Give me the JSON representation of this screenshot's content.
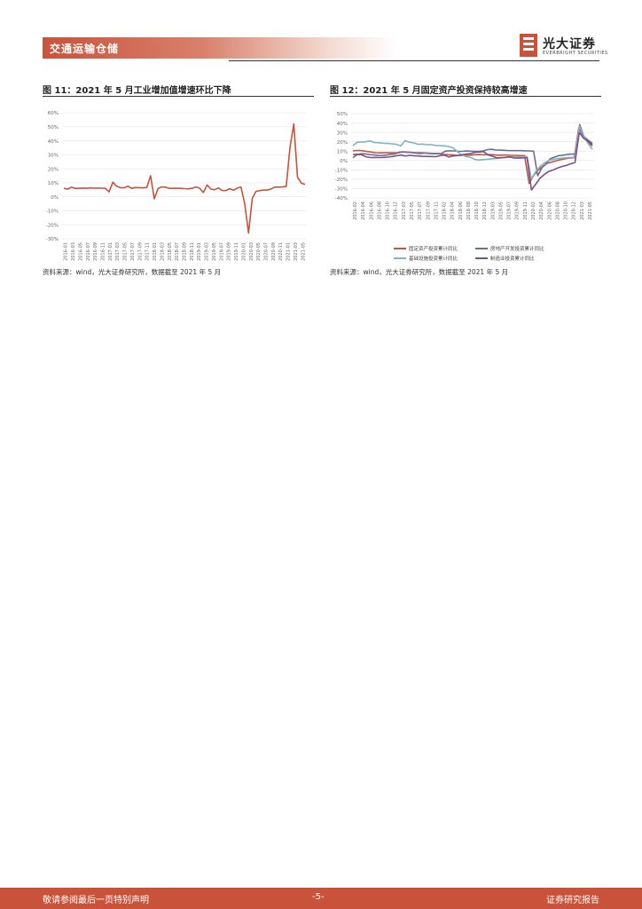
{
  "header": {
    "title": "交通运输仓储",
    "logo_name": "光大证券",
    "logo_sub": "EVERBRIGHT SECURITIES"
  },
  "colors": {
    "accent": "#c8533a"
  },
  "figures": [
    {
      "title": "图 11：2021 年 5 月工业增加值增速环比下降",
      "source": "资料来源：wind，光大证券研究所，数据截至 2021 年 5 月"
    },
    {
      "title": "图 12：2021 年 5 月固定资产投资保持较高增速",
      "source": "资料来源：wind，光大证券研究所，数据截至 2021 年 5 月"
    }
  ],
  "footer": {
    "left": "敬请参阅最后一页特别声明",
    "page": "-5-",
    "right": "证券研究报告"
  },
  "chart_data": [
    {
      "type": "line",
      "ylim": [
        -30,
        60
      ],
      "yticks": [
        "60%",
        "50%",
        "40%",
        "30%",
        "20%",
        "10%",
        "0%",
        "-10%",
        "-20%",
        "-30%"
      ],
      "xticks": [
        "2016-01",
        "2016-03",
        "2016-05",
        "2016-07",
        "2016-09",
        "2016-11",
        "2017-01",
        "2017-03",
        "2017-05",
        "2017-07",
        "2017-09",
        "2017-11",
        "2018-01",
        "2018-03",
        "2018-05",
        "2018-07",
        "2018-09",
        "2018-11",
        "2019-01",
        "2019-03",
        "2019-05",
        "2019-07",
        "2019-09",
        "2019-11",
        "2020-01",
        "2020-03",
        "2020-05",
        "2020-07",
        "2020-09",
        "2020-11",
        "2021-01",
        "2021-03",
        "2021-05"
      ],
      "series": [
        {
          "color": "#c8533a",
          "values": [
            6.0,
            5.4,
            6.8,
            6.0,
            6.0,
            6.2,
            6.0,
            6.3,
            6.1,
            6.2,
            6.1,
            6.0,
            3.5,
            10.4,
            7.5,
            6.5,
            6.4,
            7.6,
            6.0,
            6.6,
            6.5,
            6.4,
            6.6,
            15.0,
            -1.5,
            6.0,
            7.0,
            6.8,
            6.0,
            6.0,
            6.1,
            6.0,
            5.8,
            5.7,
            6.0,
            7.0,
            6.2,
            3.0,
            8.5,
            5.5,
            5.0,
            6.3,
            4.5,
            4.4,
            5.8,
            4.7,
            6.2,
            6.9,
            -5.0,
            -25.9,
            -1.1,
            3.9,
            4.4,
            4.8,
            4.8,
            5.6,
            6.9,
            6.9,
            7.0,
            7.3,
            35.1,
            52.0,
            14.1,
            9.8,
            8.8
          ]
        }
      ]
    },
    {
      "type": "line",
      "ylim": [
        -40,
        50
      ],
      "yticks": [
        "50%",
        "40%",
        "30%",
        "20%",
        "10%",
        "0%",
        "-10%",
        "-20%",
        "-30%",
        "-40%"
      ],
      "xticks": [
        "2016-02",
        "2016-04",
        "2016-06",
        "2016-08",
        "2016-10",
        "2016-12",
        "2017-03",
        "2017-05",
        "2017-07",
        "2017-09",
        "2017-11",
        "2018-02",
        "2018-04",
        "2018-06",
        "2018-08",
        "2018-10",
        "2018-12",
        "2019-03",
        "2019-05",
        "2019-07",
        "2019-09",
        "2019-11",
        "2020-02",
        "2020-04",
        "2020-06",
        "2020-08",
        "2020-10",
        "2020-12",
        "2021-03",
        "2021-05"
      ],
      "series": [
        {
          "name": "固定资产投资累计同比",
          "color": "#c8533a",
          "values": [
            10.2,
            10.7,
            10.5,
            9.6,
            9.0,
            8.3,
            8.1,
            8.2,
            8.3,
            8.2,
            8.1,
            9.2,
            8.9,
            8.6,
            8.3,
            8.3,
            8.0,
            7.5,
            7.2,
            7.5,
            6.5,
            6.1,
            6.0,
            5.5,
            5.4,
            5.6,
            5.7,
            6.1,
            6.3,
            5.9,
            6.3,
            6.1,
            5.6,
            5.8,
            5.8,
            5.5,
            5.4,
            5.2,
            5.2,
            -24.5,
            -16.1,
            -10.3,
            -6.3,
            -3.1,
            -1.6,
            -0.3,
            0.8,
            1.8,
            2.6,
            2.9,
            35.0,
            25.6,
            19.9,
            15.4
          ]
        },
        {
          "name": "房地产开发投资累计同比",
          "color": "#6b6f8f",
          "values": [
            3.0,
            6.2,
            7.2,
            7.0,
            6.1,
            6.0,
            5.3,
            5.4,
            5.8,
            6.6,
            6.9,
            8.9,
            9.1,
            8.8,
            8.5,
            7.9,
            7.5,
            7.8,
            7.8,
            7.6,
            7.5,
            7.3,
            9.9,
            10.3,
            10.2,
            9.7,
            9.7,
            10.1,
            9.9,
            9.7,
            9.7,
            10.1,
            11.6,
            11.9,
            11.2,
            11.1,
            10.9,
            10.6,
            10.5,
            10.5,
            10.5,
            10.3,
            10.2,
            9.9,
            -16.3,
            -7.7,
            -3.3,
            1.9,
            3.6,
            5.2,
            5.6,
            6.3,
            6.8,
            7.0,
            38.3,
            25.6,
            21.6,
            18.3
          ]
        },
        {
          "name": "基础设施投资累计同比",
          "color": "#7fb3c8",
          "values": [
            15.7,
            19.6,
            19.8,
            20.0,
            20.9,
            19.1,
            18.9,
            18.5,
            18.2,
            17.8,
            17.2,
            15.7,
            21.1,
            19.5,
            18.7,
            17.2,
            17.5,
            16.8,
            16.9,
            16.0,
            15.8,
            15.6,
            14.9,
            13.4,
            9.4,
            5.8,
            4.2,
            3.3,
            1.2,
            0.5,
            1.0,
            1.4,
            1.8,
            2.3,
            2.6,
            3.2,
            3.8,
            4.2,
            4.0,
            3.4,
            3.8,
            -19.7,
            -11.8,
            -6.3,
            -2.7,
            0.1,
            1.2,
            2.0,
            2.4,
            2.9,
            3.3,
            3.4,
            36.6,
            26.9,
            18.4,
            11.8
          ]
        },
        {
          "name": "制造业投资累计同比",
          "color": "#7a4f8a",
          "values": [
            6.4,
            6.6,
            6.0,
            4.0,
            3.1,
            3.3,
            3.1,
            3.3,
            3.6,
            4.2,
            5.0,
            5.8,
            4.8,
            5.5,
            5.1,
            4.8,
            4.4,
            4.3,
            4.2,
            4.1,
            5.2,
            5.8,
            3.8,
            4.8,
            5.2,
            6.0,
            6.9,
            7.3,
            8.7,
            9.1,
            9.5,
            5.9,
            4.6,
            2.7,
            3.0,
            3.3,
            3.9,
            2.6,
            2.5,
            2.6,
            3.1,
            -31.5,
            -25.2,
            -18.8,
            -14.8,
            -11.7,
            -10.2,
            -8.1,
            -6.5,
            -5.3,
            -3.5,
            -2.2,
            29.8,
            23.8,
            20.4,
            17.0
          ]
        }
      ]
    }
  ]
}
